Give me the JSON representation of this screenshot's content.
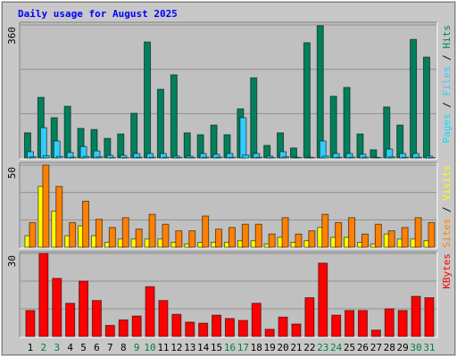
{
  "chart_data": [
    {
      "type": "bar",
      "title": "Daily usage for August 2025",
      "ylim": [
        0,
        360
      ],
      "yticks": [
        360
      ],
      "legend_separator": " / ",
      "series": [
        {
          "name": "Pages",
          "color": "#00e0ff",
          "values": [
            3,
            6,
            4,
            2,
            4,
            3,
            1,
            1,
            2,
            2,
            2,
            1,
            1,
            2,
            2,
            2,
            8,
            2,
            1,
            3,
            1,
            1,
            5,
            2,
            2,
            2,
            1,
            3,
            2,
            2,
            1
          ]
        },
        {
          "name": "Files",
          "color": "#33ccff",
          "values": [
            17,
            82,
            46,
            15,
            31,
            19,
            7,
            7,
            12,
            12,
            12,
            5,
            5,
            12,
            10,
            12,
            109,
            12,
            5,
            17,
            2,
            2,
            46,
            12,
            12,
            10,
            2,
            24,
            12,
            12,
            5
          ]
        },
        {
          "name": "Hits",
          "color": "#00805c",
          "values": [
            68,
            164,
            109,
            140,
            80,
            77,
            53,
            65,
            121,
            314,
            186,
            225,
            68,
            63,
            89,
            63,
            133,
            217,
            34,
            68,
            27,
            312,
            358,
            167,
            191,
            65,
            22,
            138,
            89,
            321,
            273
          ]
        }
      ]
    },
    {
      "type": "bar",
      "ylim": [
        0,
        50
      ],
      "yticks": [
        50
      ],
      "legend_separator": " / ",
      "series": [
        {
          "name": "Sites",
          "color": "#ff8000",
          "values": [
            15,
            50,
            37,
            15,
            28,
            17,
            12,
            18,
            11,
            20,
            14,
            10,
            10,
            19,
            11,
            12,
            14,
            14,
            8,
            18,
            8,
            10,
            20,
            15,
            18,
            8,
            14,
            10,
            12,
            18,
            15
          ]
        },
        {
          "name": "Visits",
          "color": "#ffff00",
          "values": [
            7,
            37,
            22,
            7,
            13,
            7,
            3,
            5,
            5,
            5,
            5,
            3,
            2,
            3,
            3,
            3,
            4,
            4,
            2,
            6,
            3,
            4,
            12,
            6,
            6,
            3,
            2,
            8,
            5,
            5,
            4
          ]
        }
      ]
    },
    {
      "type": "bar",
      "ylim": [
        0,
        30
      ],
      "yticks": [
        30
      ],
      "categories": [
        "1",
        "2",
        "3",
        "4",
        "5",
        "6",
        "7",
        "8",
        "9",
        "10",
        "11",
        "12",
        "13",
        "14",
        "15",
        "16",
        "17",
        "18",
        "19",
        "20",
        "21",
        "22",
        "23",
        "24",
        "25",
        "26",
        "27",
        "28",
        "29",
        "30",
        "31"
      ],
      "category_colors": [
        "#000000",
        "#008040",
        "#008040",
        "#000000",
        "#000000",
        "#000000",
        "#000000",
        "#000000",
        "#008040",
        "#008040",
        "#000000",
        "#000000",
        "#000000",
        "#000000",
        "#000000",
        "#008040",
        "#008040",
        "#000000",
        "#000000",
        "#000000",
        "#000000",
        "#000000",
        "#008040",
        "#008040",
        "#000000",
        "#000000",
        "#000000",
        "#000000",
        "#000000",
        "#008040",
        "#008040"
      ],
      "series": [
        {
          "name": "KBytes",
          "color": "#ff0000",
          "values": [
            9.4,
            30,
            21,
            12,
            20,
            13,
            4,
            6,
            7.4,
            18,
            13,
            8,
            5.2,
            4.8,
            7.7,
            6.5,
            5.8,
            12,
            2.6,
            7,
            4.5,
            14,
            26.5,
            7.7,
            9.4,
            9.4,
            2.3,
            10,
            9.4,
            14.5,
            14
          ]
        }
      ]
    }
  ]
}
